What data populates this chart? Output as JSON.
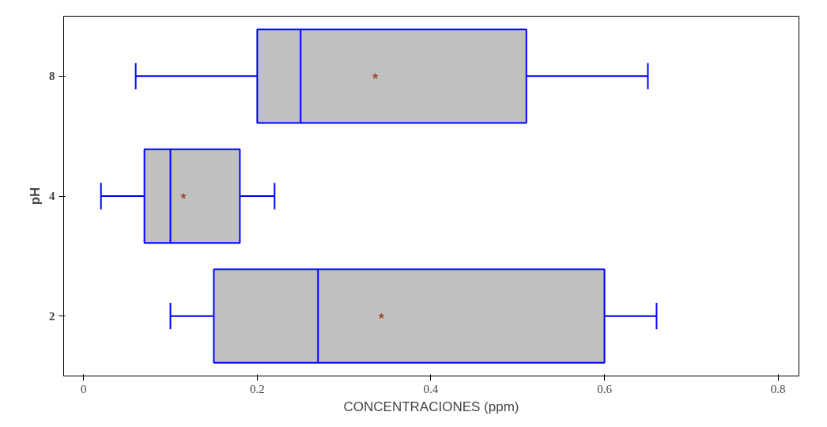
{
  "chart_data": {
    "type": "box",
    "orientation": "horizontal",
    "xlabel": "CONCENTRACIONES (ppm)",
    "ylabel": "pH",
    "categories": [
      "8",
      "4",
      "2"
    ],
    "series": [
      {
        "color": "#0000ff",
        "boxes": [
          {
            "low": 0.06,
            "q1": 0.2,
            "median": 0.25,
            "q3": 0.51,
            "high": 0.65,
            "mean": 0.336
          },
          {
            "low": 0.02,
            "q1": 0.07,
            "median": 0.1,
            "q3": 0.18,
            "high": 0.22,
            "mean": 0.115
          },
          {
            "low": 0.1,
            "q1": 0.15,
            "median": 0.27,
            "q3": 0.6,
            "high": 0.66,
            "mean": 0.343
          }
        ]
      }
    ],
    "xlim": [
      -0.023,
      0.824
    ],
    "xticks": [
      0,
      0.2,
      0.4,
      0.6,
      0.8
    ],
    "grid": false
  }
}
